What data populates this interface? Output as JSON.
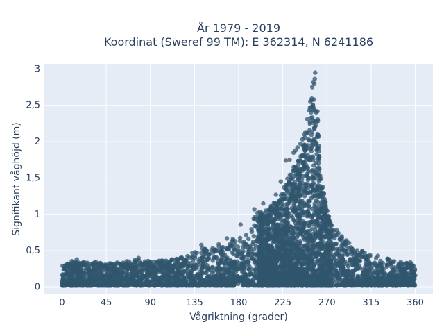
{
  "chart_data": {
    "type": "scatter",
    "title": "År 1979 - 2019",
    "subtitle": "Koordinat (Sweref 99 TM): E 362314, N 6241186",
    "xlabel": "Vågriktning (grader)",
    "ylabel": "Signifikant våghöjd (m)",
    "xlim": [
      -18,
      378
    ],
    "ylim": [
      -0.1,
      3.07
    ],
    "xticks": [
      0,
      45,
      90,
      135,
      180,
      225,
      270,
      315,
      360
    ],
    "xtick_labels": [
      "0",
      "45",
      "90",
      "135",
      "180",
      "225",
      "270",
      "315",
      "360"
    ],
    "yticks": [
      0,
      0.5,
      1,
      1.5,
      2,
      2.5,
      3
    ],
    "ytick_labels": [
      "0",
      "0,5",
      "1",
      "1,5",
      "2",
      "2,5",
      "3"
    ],
    "grid": true,
    "legend": "none",
    "colors": {
      "marker": "#30566e",
      "plot_bg": "#e5ecf6",
      "grid": "#ffffff",
      "text": "#2a3f5f"
    },
    "series": [
      {
        "envelope": [
          [
            0,
            0.33
          ],
          [
            10,
            0.36
          ],
          [
            20,
            0.34
          ],
          [
            30,
            0.35
          ],
          [
            45,
            0.33
          ],
          [
            60,
            0.34
          ],
          [
            75,
            0.38
          ],
          [
            90,
            0.36
          ],
          [
            105,
            0.37
          ],
          [
            120,
            0.4
          ],
          [
            135,
            0.5
          ],
          [
            150,
            0.56
          ],
          [
            165,
            0.61
          ],
          [
            180,
            0.72
          ],
          [
            190,
            0.86
          ],
          [
            200,
            1.05
          ],
          [
            210,
            1.1
          ],
          [
            220,
            1.2
          ],
          [
            230,
            1.5
          ],
          [
            240,
            1.75
          ],
          [
            245,
            1.95
          ],
          [
            250,
            2.2
          ],
          [
            255,
            2.7
          ],
          [
            258,
            2.95
          ],
          [
            260,
            2.6
          ],
          [
            263,
            1.6
          ],
          [
            268,
            1.2
          ],
          [
            275,
            0.85
          ],
          [
            285,
            0.7
          ],
          [
            300,
            0.52
          ],
          [
            315,
            0.45
          ],
          [
            330,
            0.4
          ],
          [
            345,
            0.35
          ],
          [
            360,
            0.31
          ]
        ],
        "min_height": 0.02,
        "notable_points": [
          [
            258,
            2.95
          ],
          [
            256,
            2.82
          ],
          [
            255,
            2.75
          ],
          [
            253,
            2.55
          ],
          [
            252,
            2.43
          ],
          [
            250,
            2.31
          ],
          [
            248,
            2.13
          ],
          [
            247,
            2.1
          ],
          [
            245,
            2.03
          ],
          [
            243,
            1.97
          ],
          [
            240,
            1.92
          ],
          [
            238,
            1.88
          ],
          [
            236,
            1.85
          ],
          [
            232,
            1.75
          ],
          [
            228,
            1.74
          ],
          [
            223,
            1.45
          ],
          [
            218,
            1.27
          ],
          [
            205,
            1.15
          ],
          [
            196,
            1.07
          ],
          [
            182,
            0.86
          ],
          [
            168,
            0.67
          ],
          [
            142,
            0.58
          ],
          [
            78,
            0.4
          ],
          [
            15,
            0.38
          ],
          [
            267,
            1.28
          ],
          [
            272,
            0.97
          ],
          [
            280,
            0.78
          ],
          [
            290,
            0.64
          ],
          [
            306,
            0.5
          ],
          [
            322,
            0.43
          ],
          [
            355,
            0.34
          ]
        ]
      }
    ]
  }
}
